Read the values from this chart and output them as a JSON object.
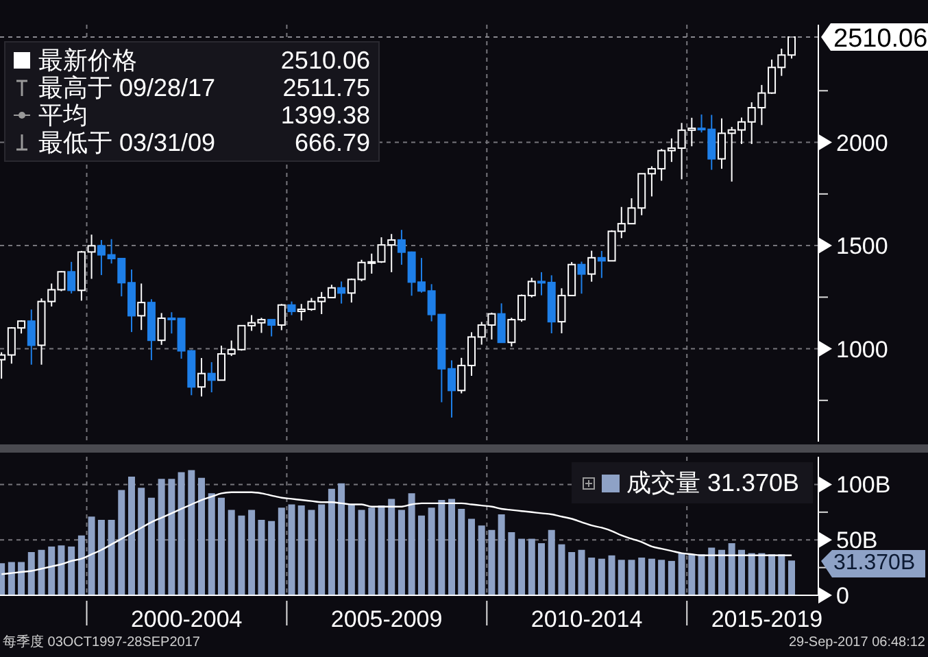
{
  "chart_data": [
    {
      "type": "candlestick",
      "x": [
        "1997-11-15",
        "1998-02-15",
        "1998-05-15",
        "1998-08-15",
        "1998-11-15",
        "1999-02-15",
        "1999-05-15",
        "1999-08-15",
        "1999-11-15",
        "2000-02-15",
        "2000-05-15",
        "2000-08-15",
        "2000-11-15",
        "2001-02-15",
        "2001-05-15",
        "2001-08-15",
        "2001-11-15",
        "2002-02-15",
        "2002-05-15",
        "2002-08-15",
        "2002-11-15",
        "2003-02-15",
        "2003-05-15",
        "2003-08-15",
        "2003-11-15",
        "2004-02-15",
        "2004-05-15",
        "2004-08-15",
        "2004-11-15",
        "2005-02-15",
        "2005-05-15",
        "2005-08-15",
        "2005-11-15",
        "2006-02-15",
        "2006-05-15",
        "2006-08-15",
        "2006-11-15",
        "2007-02-15",
        "2007-05-15",
        "2007-08-15",
        "2007-11-15",
        "2008-02-15",
        "2008-05-15",
        "2008-08-15",
        "2008-11-15",
        "2009-02-15",
        "2009-05-15",
        "2009-08-15",
        "2009-11-15",
        "2010-02-15",
        "2010-05-15",
        "2010-08-15",
        "2010-11-15",
        "2011-02-15",
        "2011-05-15",
        "2011-08-15",
        "2011-11-15",
        "2012-02-15",
        "2012-05-15",
        "2012-08-15",
        "2012-11-15",
        "2013-02-15",
        "2013-05-15",
        "2013-08-15",
        "2013-11-15",
        "2014-02-15",
        "2014-05-15",
        "2014-08-15",
        "2014-11-15",
        "2015-02-15",
        "2015-05-15",
        "2015-08-15",
        "2015-11-15",
        "2016-02-15",
        "2016-05-15",
        "2016-08-15",
        "2016-11-15",
        "2017-02-15",
        "2017-05-15",
        "2017-08-15"
      ],
      "ohlc": [
        [
          947,
          983,
          855,
          970
        ],
        [
          970,
          1105,
          928,
          1101
        ],
        [
          1101,
          1138,
          1074,
          1134
        ],
        [
          1134,
          1190,
          923,
          1017
        ],
        [
          1017,
          1244,
          923,
          1229
        ],
        [
          1229,
          1316,
          1205,
          1286
        ],
        [
          1286,
          1376,
          1279,
          1373
        ],
        [
          1373,
          1421,
          1268,
          1283
        ],
        [
          1283,
          1474,
          1233,
          1469
        ],
        [
          1469,
          1553,
          1339,
          1499
        ],
        [
          1499,
          1527,
          1357,
          1455
        ],
        [
          1455,
          1531,
          1413,
          1437
        ],
        [
          1437,
          1437,
          1254,
          1320
        ],
        [
          1320,
          1384,
          1081,
          1160
        ],
        [
          1160,
          1316,
          1091,
          1224
        ],
        [
          1224,
          1240,
          945,
          1041
        ],
        [
          1041,
          1173,
          1019,
          1148
        ],
        [
          1148,
          1177,
          1074,
          1147
        ],
        [
          1147,
          1147,
          952,
          990
        ],
        [
          990,
          994,
          775,
          815
        ],
        [
          815,
          955,
          769,
          880
        ],
        [
          880,
          935,
          789,
          848
        ],
        [
          848,
          1015,
          848,
          975
        ],
        [
          975,
          1040,
          965,
          996
        ],
        [
          996,
          1112,
          991,
          1112
        ],
        [
          1112,
          1163,
          1087,
          1126
        ],
        [
          1126,
          1150,
          1077,
          1141
        ],
        [
          1141,
          1141,
          1060,
          1115
        ],
        [
          1115,
          1217,
          1090,
          1212
        ],
        [
          1212,
          1229,
          1163,
          1181
        ],
        [
          1181,
          1217,
          1137,
          1191
        ],
        [
          1191,
          1246,
          1184,
          1229
        ],
        [
          1229,
          1275,
          1168,
          1248
        ],
        [
          1248,
          1310,
          1246,
          1295
        ],
        [
          1295,
          1326,
          1219,
          1270
        ],
        [
          1270,
          1340,
          1224,
          1336
        ],
        [
          1336,
          1431,
          1327,
          1418
        ],
        [
          1418,
          1461,
          1364,
          1421
        ],
        [
          1421,
          1540,
          1416,
          1503
        ],
        [
          1503,
          1556,
          1371,
          1527
        ],
        [
          1527,
          1576,
          1407,
          1468
        ],
        [
          1468,
          1471,
          1257,
          1323
        ],
        [
          1323,
          1440,
          1272,
          1280
        ],
        [
          1280,
          1313,
          1133,
          1166
        ],
        [
          1166,
          1167,
          741,
          903
        ],
        [
          903,
          944,
          666.79,
          798
        ],
        [
          798,
          956,
          784,
          919
        ],
        [
          919,
          1080,
          869,
          1057
        ],
        [
          1057,
          1130,
          1020,
          1115
        ],
        [
          1115,
          1175,
          1045,
          1169
        ],
        [
          1169,
          1220,
          1029,
          1031
        ],
        [
          1031,
          1150,
          1011,
          1141
        ],
        [
          1141,
          1263,
          1131,
          1258
        ],
        [
          1258,
          1344,
          1249,
          1326
        ],
        [
          1326,
          1371,
          1259,
          1321
        ],
        [
          1321,
          1356,
          1075,
          1131
        ],
        [
          1131,
          1293,
          1075,
          1258
        ],
        [
          1258,
          1420,
          1258,
          1408
        ],
        [
          1408,
          1422,
          1267,
          1362
        ],
        [
          1362,
          1475,
          1325,
          1441
        ],
        [
          1441,
          1474,
          1343,
          1426
        ],
        [
          1426,
          1574,
          1426,
          1569
        ],
        [
          1569,
          1687,
          1536,
          1606
        ],
        [
          1606,
          1729,
          1604,
          1682
        ],
        [
          1682,
          1849,
          1647,
          1848
        ],
        [
          1848,
          1884,
          1738,
          1872
        ],
        [
          1872,
          1968,
          1814,
          1960
        ],
        [
          1960,
          2019,
          1905,
          1972
        ],
        [
          1972,
          2094,
          1821,
          2059
        ],
        [
          2059,
          2119,
          1981,
          2068
        ],
        [
          2068,
          2135,
          2048,
          2063
        ],
        [
          2063,
          2133,
          1867,
          1920
        ],
        [
          1920,
          2116,
          1872,
          2044
        ],
        [
          2044,
          2075,
          1810,
          2060
        ],
        [
          2060,
          2120,
          1992,
          2099
        ],
        [
          2099,
          2194,
          1992,
          2168
        ],
        [
          2168,
          2278,
          2084,
          2239
        ],
        [
          2239,
          2401,
          2235,
          2363
        ],
        [
          2363,
          2454,
          2322,
          2423
        ],
        [
          2423,
          2511.75,
          2406,
          2510.06
        ]
      ],
      "colors": [
        "#ffffff",
        "#ffffff",
        "#ffffff",
        "#1e7fe8",
        "#ffffff",
        "#ffffff",
        "#ffffff",
        "#1e7fe8",
        "#ffffff",
        "#ffffff",
        "#1e7fe8",
        "#1e7fe8",
        "#1e7fe8",
        "#1e7fe8",
        "#ffffff",
        "#1e7fe8",
        "#ffffff",
        "#1e7fe8",
        "#1e7fe8",
        "#1e7fe8",
        "#ffffff",
        "#1e7fe8",
        "#ffffff",
        "#ffffff",
        "#ffffff",
        "#ffffff",
        "#ffffff",
        "#1e7fe8",
        "#ffffff",
        "#1e7fe8",
        "#ffffff",
        "#ffffff",
        "#ffffff",
        "#ffffff",
        "#1e7fe8",
        "#ffffff",
        "#ffffff",
        "#ffffff",
        "#ffffff",
        "#ffffff",
        "#1e7fe8",
        "#1e7fe8",
        "#1e7fe8",
        "#1e7fe8",
        "#1e7fe8",
        "#1e7fe8",
        "#ffffff",
        "#ffffff",
        "#ffffff",
        "#ffffff",
        "#1e7fe8",
        "#ffffff",
        "#ffffff",
        "#ffffff",
        "#1e7fe8",
        "#1e7fe8",
        "#ffffff",
        "#ffffff",
        "#1e7fe8",
        "#ffffff",
        "#1e7fe8",
        "#ffffff",
        "#ffffff",
        "#ffffff",
        "#ffffff",
        "#ffffff",
        "#ffffff",
        "#ffffff",
        "#ffffff",
        "#ffffff",
        "#1e7fe8",
        "#1e7fe8",
        "#ffffff",
        "#ffffff",
        "#ffffff",
        "#ffffff",
        "#ffffff",
        "#ffffff",
        "#ffffff",
        "#ffffff"
      ],
      "xlim": [
        "1997-11-01",
        "2018-04-15"
      ],
      "xticks": [
        {
          "value": "2000-01-01",
          "label": null
        },
        {
          "value": "2005-01-01",
          "label": null
        },
        {
          "value": "2010-01-01",
          "label": null
        },
        {
          "value": "2015-01-01",
          "label": null
        }
      ],
      "ylim": [
        550,
        2570
      ],
      "yticks": [
        {
          "value": 750,
          "label": null
        },
        1000,
        {
          "value": 1250,
          "label": null
        },
        1500,
        {
          "value": 1750,
          "label": null
        },
        2000,
        {
          "value": 2250,
          "label": null
        }
      ],
      "tick_labels": "y",
      "grid": true,
      "ref_lines": [
        {
          "axis": "y",
          "value": 2510.06,
          "label": "2510.06",
          "line_style": "dashed"
        }
      ],
      "annotations": [
        "最新价格 2510.06",
        "最高于 09/28/17 2511.75",
        "平均 1399.38",
        "最低于 03/31/09 666.79"
      ]
    },
    {
      "type": "bar",
      "x": [
        "1997-11-15",
        "1998-02-15",
        "1998-05-15",
        "1998-08-15",
        "1998-11-15",
        "1999-02-15",
        "1999-05-15",
        "1999-08-15",
        "1999-11-15",
        "2000-02-15",
        "2000-05-15",
        "2000-08-15",
        "2000-11-15",
        "2001-02-15",
        "2001-05-15",
        "2001-08-15",
        "2001-11-15",
        "2002-02-15",
        "2002-05-15",
        "2002-08-15",
        "2002-11-15",
        "2003-02-15",
        "2003-05-15",
        "2003-08-15",
        "2003-11-15",
        "2004-02-15",
        "2004-05-15",
        "2004-08-15",
        "2004-11-15",
        "2005-02-15",
        "2005-05-15",
        "2005-08-15",
        "2005-11-15",
        "2006-02-15",
        "2006-05-15",
        "2006-08-15",
        "2006-11-15",
        "2007-02-15",
        "2007-05-15",
        "2007-08-15",
        "2007-11-15",
        "2008-02-15",
        "2008-05-15",
        "2008-08-15",
        "2008-11-15",
        "2009-02-15",
        "2009-05-15",
        "2009-08-15",
        "2009-11-15",
        "2010-02-15",
        "2010-05-15",
        "2010-08-15",
        "2010-11-15",
        "2011-02-15",
        "2011-05-15",
        "2011-08-15",
        "2011-11-15",
        "2012-02-15",
        "2012-05-15",
        "2012-08-15",
        "2012-11-15",
        "2013-02-15",
        "2013-05-15",
        "2013-08-15",
        "2013-11-15",
        "2014-02-15",
        "2014-05-15",
        "2014-08-15",
        "2014-11-15",
        "2015-02-15",
        "2015-05-15",
        "2015-08-15",
        "2015-11-15",
        "2016-02-15",
        "2016-05-15",
        "2016-08-15",
        "2016-11-15",
        "2017-02-15",
        "2017-05-15",
        "2017-08-15"
      ],
      "series": [
        {
          "name": "成交量 31.370B",
          "color": "#8ea2c6",
          "values": [
            29,
            30,
            30,
            39,
            41,
            44,
            45,
            44,
            54,
            71,
            68,
            68,
            95,
            107,
            97,
            88,
            105,
            105,
            111,
            113,
            106,
            92,
            88,
            77,
            72,
            77,
            68,
            67,
            79,
            82,
            81,
            77,
            82,
            96,
            101,
            82,
            77,
            79,
            81,
            87,
            77,
            92,
            72,
            79,
            86,
            87,
            78,
            69,
            63,
            59,
            73,
            57,
            51,
            51,
            47,
            59,
            46,
            39,
            41,
            34,
            33,
            36,
            32,
            32,
            34,
            33,
            32,
            31,
            38,
            37,
            37,
            43,
            41,
            47,
            41,
            38,
            38,
            37,
            37,
            31.37
          ]
        },
        {
          "type": "line",
          "color": "#ffffff",
          "values": [
            19,
            20,
            21,
            22,
            24,
            26,
            28,
            31,
            33,
            37,
            41,
            46,
            51,
            56,
            61,
            66,
            70,
            74,
            78,
            82,
            86,
            89,
            92,
            93,
            93,
            93,
            92,
            90,
            88,
            87,
            86,
            85,
            84,
            84,
            83,
            82,
            82,
            80,
            80,
            80,
            80,
            82,
            83,
            83,
            83,
            83,
            83,
            82,
            81,
            80,
            78,
            77,
            76,
            75,
            74,
            73,
            71,
            69,
            66,
            63,
            61,
            58,
            54,
            51,
            48,
            44,
            42,
            40,
            38,
            37,
            36,
            36,
            36,
            36,
            36,
            36,
            36,
            36,
            36,
            36
          ]
        }
      ],
      "xlim": [
        "1997-11-01",
        "2018-04-15"
      ],
      "xticks": [
        {
          "value": "2000-01-01",
          "label": null
        },
        {
          "value": "2002-07-01",
          "label": "2000-2004"
        },
        {
          "value": "2005-01-01",
          "label": null
        },
        {
          "value": "2007-07-01",
          "label": "2005-2009"
        },
        {
          "value": "2010-01-01",
          "label": null
        },
        {
          "value": "2012-07-01",
          "label": "2010-2014"
        },
        {
          "value": "2015-01-01",
          "label": null
        },
        {
          "value": "2017-01-01",
          "label": "2015-2019"
        }
      ],
      "ylim": [
        0,
        125
      ],
      "yticks": [
        0,
        {
          "value": 25,
          "label": null
        },
        {
          "value": 50,
          "label": "50B"
        },
        {
          "value": 75,
          "label": null
        },
        {
          "value": 100,
          "label": "100B"
        }
      ],
      "grid": true,
      "legend": "top right",
      "marker": "none",
      "annotations": [
        {
          "text": "31.370B",
          "x": "2017-08-15",
          "y": 31.37
        },
        "每季度 03OCT1997-28SEP2017",
        "29-Sep-2017 06:48:12"
      ]
    }
  ]
}
